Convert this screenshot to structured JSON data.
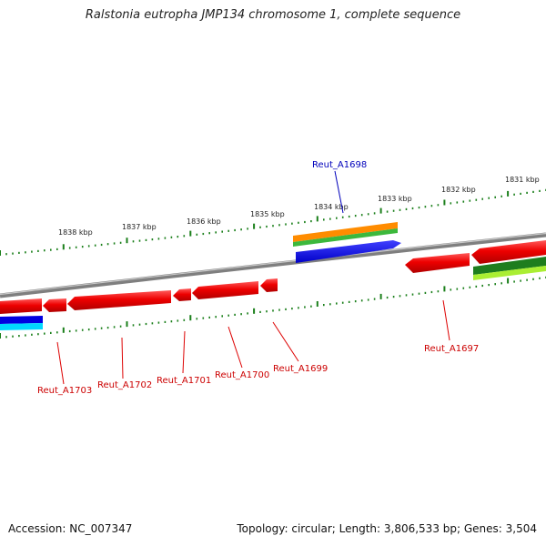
{
  "title": "Ralstonia eutropha JMP134 chromosome 1, complete sequence",
  "footer": {
    "accession": "Accession: NC_007347",
    "summary": "Topology: circular; Length: 3,806,533 bp; Genes: 3,504"
  },
  "colors": {
    "gene_red": "#ff0000",
    "gene_blue": "#0000ff",
    "gene_orange": "#ff8c00",
    "gene_green": "#1e7d1e",
    "gene_lime": "#99ee22",
    "gene_cyan": "#00d8ff",
    "backbone": "#888888",
    "tick_green": "#1a7f1a",
    "label_red": "#cc0000",
    "label_blue": "#0000bb"
  },
  "tick_labels": [
    "1838 kbp",
    "1837 kbp",
    "1836 kbp",
    "1835 kbp",
    "1834 kbp",
    "1833 kbp",
    "1832 kbp",
    "1831 kbp"
  ],
  "gene_labels": {
    "top": [
      "Reut_A1698"
    ],
    "bottom": [
      "Reut_A1703",
      "Reut_A1702",
      "Reut_A1701",
      "Reut_A1700",
      "Reut_A1699",
      "Reut_A1697"
    ]
  }
}
